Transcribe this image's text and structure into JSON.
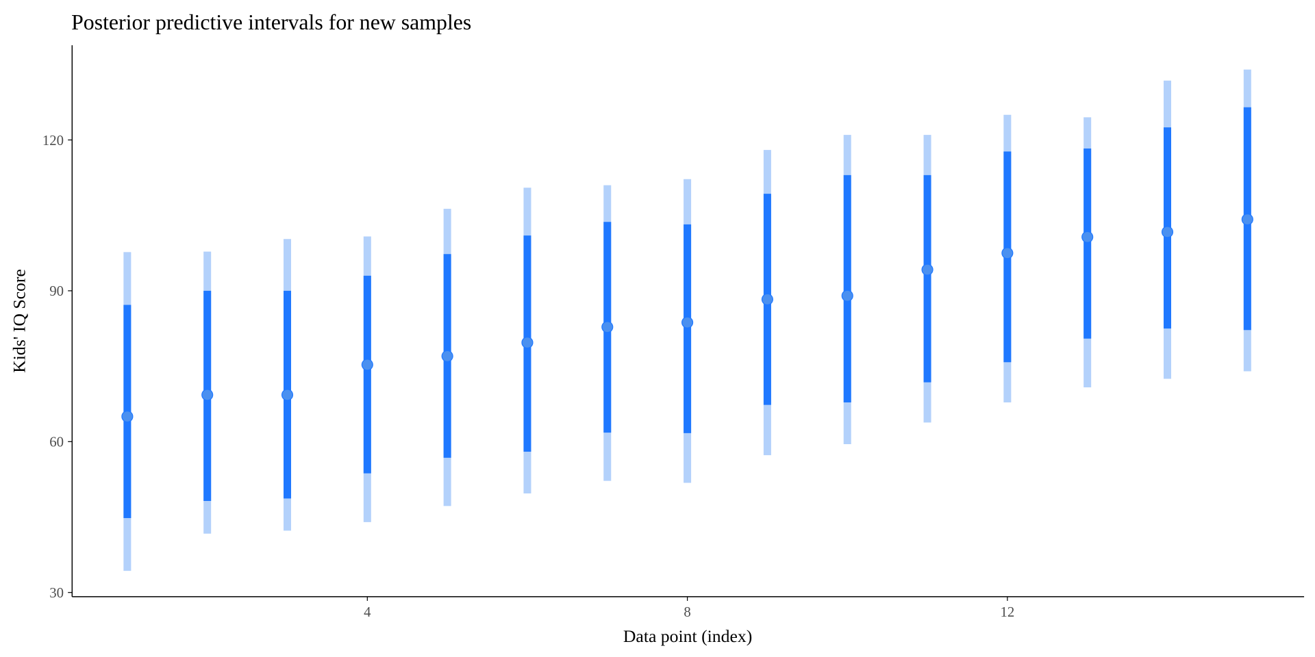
{
  "chart_data": {
    "type": "interval",
    "title": "Posterior predictive intervals for new samples",
    "xlabel": "Data point (index)",
    "ylabel": "Kids' IQ Score",
    "xlim": [
      0.2,
      16.2
    ],
    "ylim": [
      30,
      137
    ],
    "xticks": [
      4,
      8,
      12
    ],
    "yticks": [
      30,
      60,
      90,
      120
    ],
    "grid": false,
    "colors": {
      "point": "#4a90f0",
      "inner": "#1f78ff",
      "outer": "#b3d1fb"
    },
    "x": [
      1,
      2,
      3,
      4,
      5,
      6,
      7,
      8,
      9,
      10,
      11,
      12,
      13,
      14,
      15
    ],
    "median": [
      65,
      69.3,
      69.3,
      75.3,
      77,
      79.7,
      82.8,
      83.7,
      88.3,
      89,
      94.2,
      97.5,
      100.7,
      101.7,
      104.2
    ],
    "inner_low": [
      44.8,
      48.2,
      48.7,
      53.7,
      56.8,
      58,
      61.8,
      61.7,
      67.3,
      67.8,
      71.8,
      75.8,
      80.5,
      82.5,
      82.2
    ],
    "inner_high": [
      87.2,
      90,
      90,
      93,
      97.3,
      101,
      103.7,
      103.2,
      109.3,
      113,
      113,
      117.7,
      118.3,
      122.5,
      126.5
    ],
    "outer_low": [
      34.3,
      41.7,
      42.3,
      44,
      47.2,
      49.7,
      52.2,
      51.8,
      57.3,
      59.5,
      63.8,
      67.8,
      70.8,
      72.5,
      74
    ],
    "outer_high": [
      97.7,
      97.8,
      100.3,
      100.8,
      106.3,
      110.5,
      111,
      112.2,
      118,
      121,
      121,
      125,
      124.5,
      131.8,
      134
    ]
  }
}
